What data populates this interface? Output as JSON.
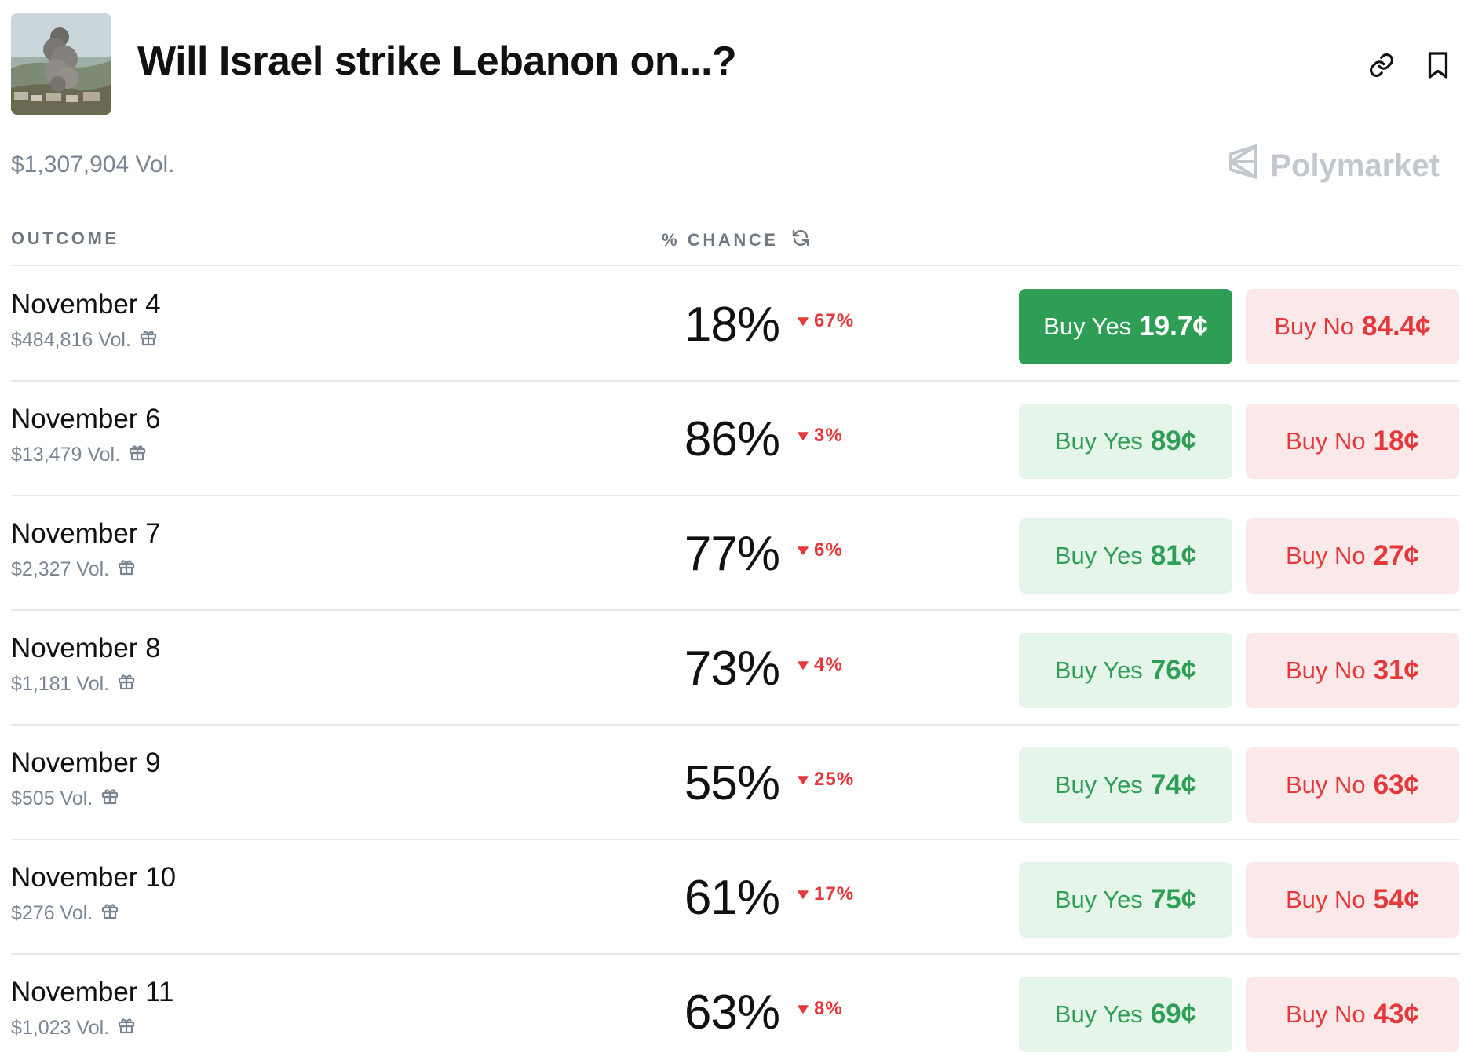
{
  "header": {
    "title": "Will Israel strike Lebanon on...?",
    "volume": "$1,307,904 Vol.",
    "brand": "Polymarket",
    "link_icon": "link-icon",
    "bookmark_icon": "bookmark-icon"
  },
  "columns": {
    "outcome": "OUTCOME",
    "chance": "% CHANCE"
  },
  "buttons": {
    "yes_label": "Buy Yes",
    "no_label": "Buy No"
  },
  "colors": {
    "yes_green": "#2e9e55",
    "yes_bg": "#e6f5ea",
    "no_red": "#e5383b",
    "no_bg": "#fbe9e9",
    "muted": "#7a8594"
  },
  "rows": [
    {
      "name": "November 4",
      "volume": "$484,816 Vol.",
      "chance": "18%",
      "delta": "67%",
      "yes": "19.7¢",
      "no": "84.4¢",
      "yes_active": true
    },
    {
      "name": "November 6",
      "volume": "$13,479 Vol.",
      "chance": "86%",
      "delta": "3%",
      "yes": "89¢",
      "no": "18¢",
      "yes_active": false
    },
    {
      "name": "November 7",
      "volume": "$2,327 Vol.",
      "chance": "77%",
      "delta": "6%",
      "yes": "81¢",
      "no": "27¢",
      "yes_active": false
    },
    {
      "name": "November 8",
      "volume": "$1,181 Vol.",
      "chance": "73%",
      "delta": "4%",
      "yes": "76¢",
      "no": "31¢",
      "yes_active": false
    },
    {
      "name": "November 9",
      "volume": "$505 Vol.",
      "chance": "55%",
      "delta": "25%",
      "yes": "74¢",
      "no": "63¢",
      "yes_active": false
    },
    {
      "name": "November 10",
      "volume": "$276 Vol.",
      "chance": "61%",
      "delta": "17%",
      "yes": "75¢",
      "no": "54¢",
      "yes_active": false
    },
    {
      "name": "November 11",
      "volume": "$1,023 Vol.",
      "chance": "63%",
      "delta": "8%",
      "yes": "69¢",
      "no": "43¢",
      "yes_active": false
    }
  ]
}
